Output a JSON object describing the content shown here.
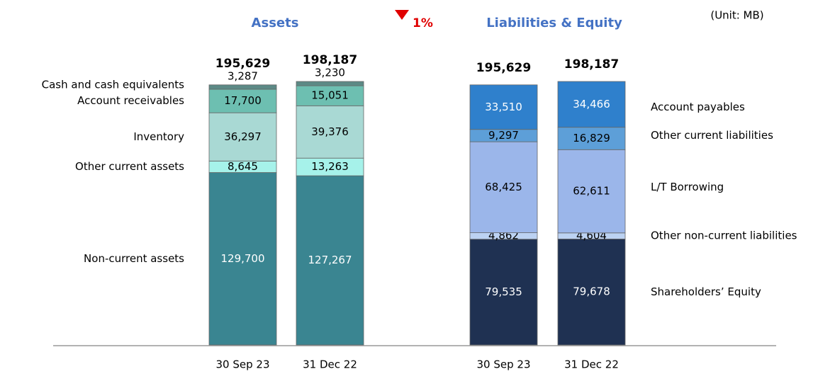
{
  "unit": "(Unit: MB)",
  "change": "1%",
  "chart_data": [
    {
      "type": "stacked_bar",
      "title": "Assets",
      "legend": "left",
      "categories": [
        "30 Sep 23",
        "31 Dec 22"
      ],
      "totals": [
        195629,
        198187
      ],
      "total_labels": [
        "195,629",
        "198,187"
      ],
      "series": [
        {
          "name": "Non-current assets",
          "color": "#3a8591",
          "values": [
            129700,
            127267
          ],
          "value_labels": [
            "129,700",
            "127,267"
          ]
        },
        {
          "name": "Other current assets",
          "color": "#a6f2ea",
          "values": [
            8645,
            13263
          ],
          "value_labels": [
            "8,645",
            "13,263"
          ]
        },
        {
          "name": "Inventory",
          "color": "#a9d9d4",
          "values": [
            36297,
            39376
          ],
          "value_labels": [
            "36,297",
            "39,376"
          ]
        },
        {
          "name": "Account receivables",
          "color": "#6dbfb1",
          "values": [
            17700,
            15051
          ],
          "value_labels": [
            "17,700",
            "15,051"
          ]
        },
        {
          "name": "Cash and cash equivalents",
          "color": "#5c8a86",
          "values": [
            3287,
            3230
          ],
          "value_labels": [
            "3,287",
            "3,230"
          ]
        }
      ]
    },
    {
      "type": "stacked_bar",
      "title": "Liabilities & Equity",
      "legend": "right",
      "categories": [
        "30 Sep 23",
        "31 Dec 22"
      ],
      "totals": [
        195629,
        198187
      ],
      "total_labels": [
        "195,629",
        "198,187"
      ],
      "series": [
        {
          "name": "Shareholders’ Equity",
          "color": "#1f3152",
          "values": [
            79535,
            79678
          ],
          "value_labels": [
            "79,535",
            "79,678"
          ]
        },
        {
          "name": "Other non-current liabilities",
          "color": "#bcd2f2",
          "values": [
            4862,
            4604
          ],
          "value_labels": [
            "4,862",
            "4,604"
          ]
        },
        {
          "name": "L/T Borrowing",
          "color": "#9bb6ea",
          "values": [
            68425,
            62611
          ],
          "value_labels": [
            "68,425",
            "62,611"
          ]
        },
        {
          "name": "Other current liabilities",
          "color": "#5d9fd8",
          "values": [
            9297,
            16829
          ],
          "value_labels": [
            "9,297",
            "16,829"
          ]
        },
        {
          "name": "Account payables",
          "color": "#2f80cc",
          "values": [
            33510,
            34466
          ],
          "value_labels": [
            "33,510",
            "34,466"
          ]
        }
      ]
    }
  ]
}
